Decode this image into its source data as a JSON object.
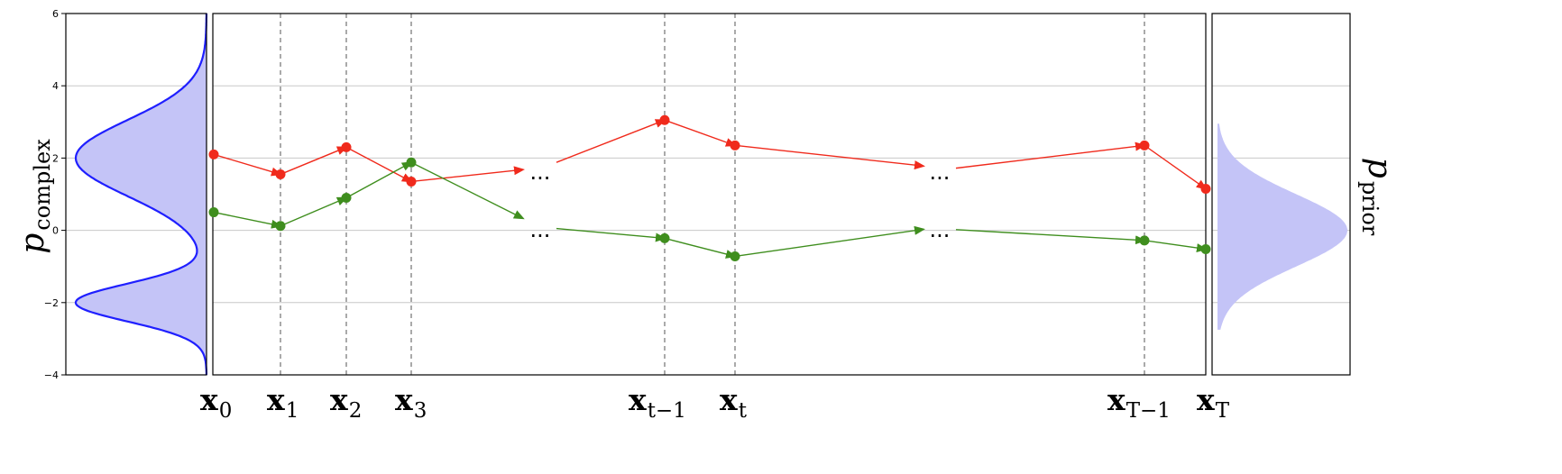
{
  "left_panel": {
    "ylabel_main": "p",
    "ylabel_sub": "complex",
    "yticks": [
      "−4",
      "−2",
      "0",
      "2",
      "4",
      "6"
    ],
    "curve_color": "#1f1fff",
    "fill_color": "#c4c4f7"
  },
  "right_panel": {
    "ylabel_main": "p",
    "ylabel_sub": "prior",
    "fill_color": "#c4c4f7"
  },
  "timesteps": [
    {
      "main": "x",
      "sub": "0"
    },
    {
      "main": "x",
      "sub": "1"
    },
    {
      "main": "x",
      "sub": "2"
    },
    {
      "main": "x",
      "sub": "3"
    },
    {
      "main": "x",
      "sub": "t−1"
    },
    {
      "main": "x",
      "sub": "t"
    },
    {
      "main": "x",
      "sub": "T−1"
    },
    {
      "main": "x",
      "sub": "T"
    }
  ],
  "ellipsis": "...",
  "colors": {
    "red_trajectory": "#f02a1c",
    "green_trajectory": "#3f8e1e",
    "grid": "#c8c8c8",
    "dashed": "#555555"
  },
  "trajectories": {
    "red": [
      2.1,
      1.55,
      2.3,
      1.35,
      3.05,
      2.35,
      2.35,
      1.15
    ],
    "green": [
      0.5,
      0.12,
      0.9,
      1.88,
      -0.22,
      -0.72,
      -0.28,
      -0.52
    ]
  }
}
